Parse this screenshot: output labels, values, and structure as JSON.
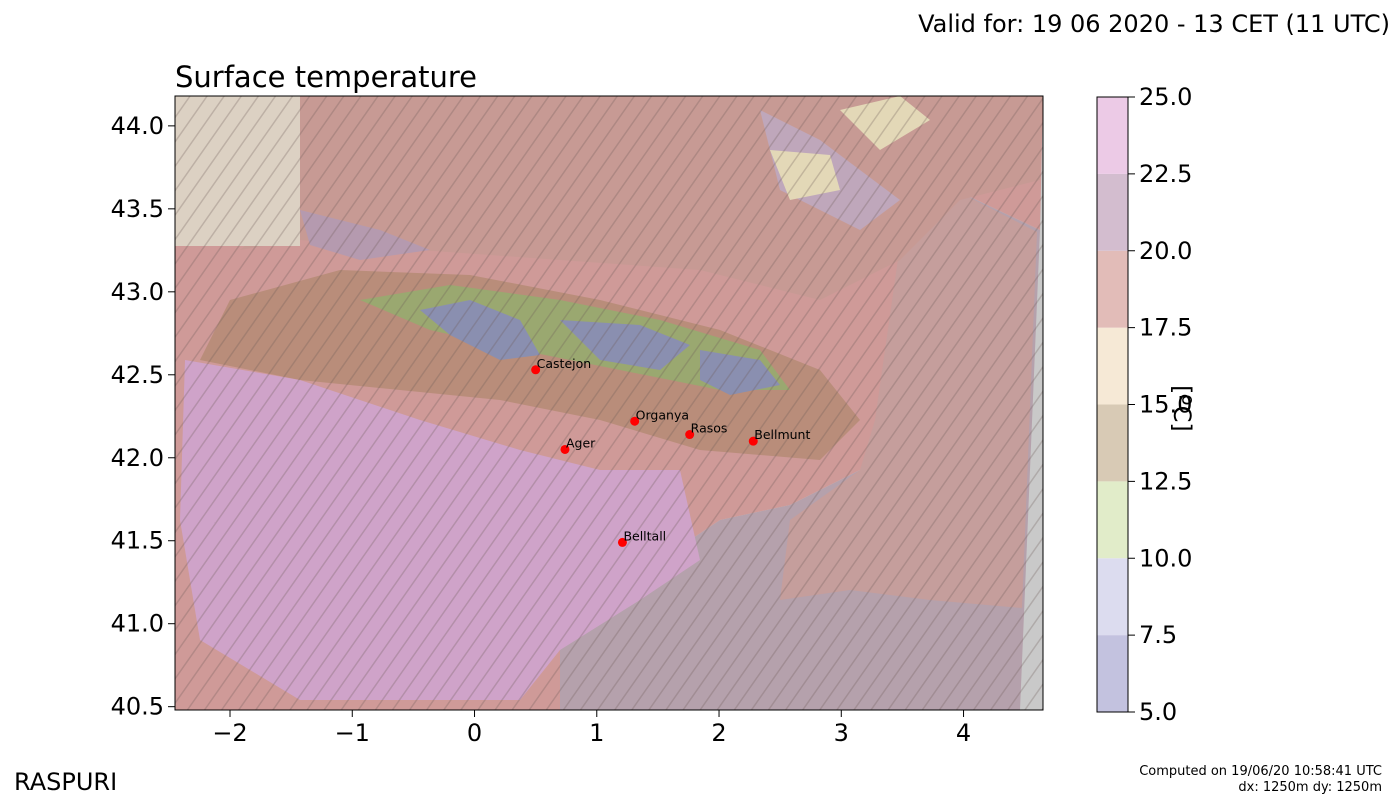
{
  "header": {
    "valid_for": "Valid for: 19 06 2020 - 13 CET (11 UTC)",
    "title": "Surface temperature"
  },
  "footer": {
    "brand": "RASPURI",
    "computed": "Computed on 19/06/20 10:58:41 UTC",
    "resolution": "dx: 1250m dy: 1250m"
  },
  "map": {
    "x_ticks": [
      -2,
      -1,
      0,
      1,
      2,
      3,
      4
    ],
    "x_tick_labels": [
      "−2",
      "−1",
      "0",
      "1",
      "2",
      "3",
      "4"
    ],
    "y_ticks": [
      44.0,
      43.5,
      43.0,
      42.5,
      42.0,
      41.5,
      41.0,
      40.5
    ],
    "y_tick_labels": [
      "44.0",
      "43.5",
      "43.0",
      "42.5",
      "42.0",
      "41.5",
      "41.0",
      "40.5"
    ],
    "x_range": [
      -2.45,
      4.65
    ],
    "y_range": [
      40.48,
      44.18
    ],
    "stations": [
      {
        "name": "Castejon",
        "lon": 0.5,
        "lat": 42.53
      },
      {
        "name": "Organya",
        "lon": 1.31,
        "lat": 42.22
      },
      {
        "name": "Rasos",
        "lon": 1.76,
        "lat": 42.14
      },
      {
        "name": "Bellmunt",
        "lon": 2.28,
        "lat": 42.1
      },
      {
        "name": "Ager",
        "lon": 0.74,
        "lat": 42.05
      },
      {
        "name": "Belltall",
        "lon": 1.21,
        "lat": 41.49
      }
    ],
    "station_color": "#ff0000"
  },
  "colorbar": {
    "unit": "[ºC]",
    "min": 5.0,
    "max": 25.0,
    "tick_labels": [
      "5.0",
      "7.5",
      "10.0",
      "12.5",
      "15.0",
      "17.5",
      "20.0",
      "22.5",
      "25.0"
    ],
    "colors": [
      "#c3c2df",
      "#dcdcef",
      "#e1ecc9",
      "#d8cab5",
      "#f6e9d6",
      "#e2bcb8",
      "#d3bdcf",
      "#eccae6"
    ]
  }
}
